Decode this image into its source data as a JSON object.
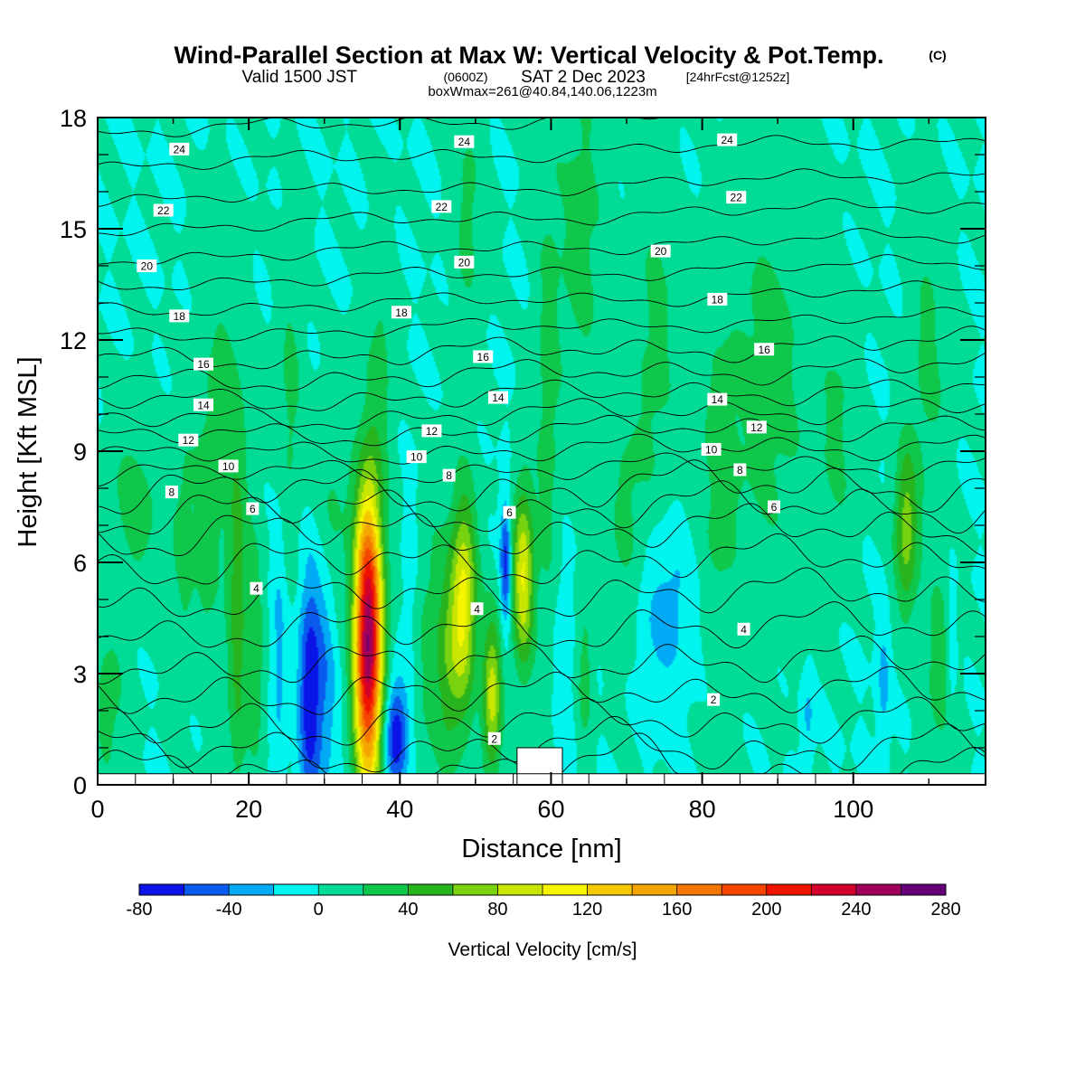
{
  "title": {
    "main": "Wind-Parallel Section at Max W: Vertical Velocity & Pot.Temp.",
    "copyright": "(C)",
    "valid_prefix": "Valid 1500 JST",
    "valid_utc": "(0600Z)",
    "valid_date": "SAT 2 Dec 2023",
    "forecast": "[24hrFcst@1252z]",
    "box_info": "boxWmax=261@40.84,140.06,1223m"
  },
  "chart_data": {
    "type": "heatmap",
    "xlabel": "Distance [nm]",
    "ylabel": "Height [Kft MSL]",
    "xlim": [
      0,
      117.5
    ],
    "ylim": [
      0,
      18
    ],
    "x_ticks": [
      0,
      20,
      40,
      60,
      80,
      100
    ],
    "y_ticks": [
      0,
      3,
      6,
      9,
      12,
      15,
      18
    ],
    "x_tick_labels": [
      "0",
      "20",
      "40",
      "60",
      "80",
      "100"
    ],
    "y_tick_labels": [
      "0",
      "3",
      "6",
      "9",
      "12",
      "15",
      "18"
    ],
    "background_w": 0,
    "colorbar": {
      "label": "Vertical Velocity [cm/s]",
      "bounds": [
        -80,
        -60,
        -40,
        -20,
        0,
        20,
        40,
        60,
        80,
        100,
        120,
        140,
        160,
        180,
        200,
        220,
        240,
        260,
        280
      ],
      "tick_values": [
        -80,
        -40,
        0,
        40,
        80,
        120,
        160,
        200,
        240,
        280
      ],
      "tick_labels": [
        "-80",
        "-40",
        "0",
        "40",
        "80",
        "120",
        "160",
        "200",
        "240",
        "280"
      ],
      "colors": [
        "#0a14e6",
        "#0a5aee",
        "#00aaf5",
        "#00f5ee",
        "#00dc96",
        "#0fc84b",
        "#28b41e",
        "#78d20f",
        "#c8e600",
        "#f5f500",
        "#f5c800",
        "#f5a500",
        "#f57800",
        "#f54600",
        "#f01400",
        "#d2002d",
        "#a0005a",
        "#640078"
      ]
    },
    "velocity_features": [
      {
        "x": 1.5,
        "zc": 2.2,
        "sx": 1.6,
        "sz": 1.6,
        "w": 28
      },
      {
        "x": 5,
        "zc": 7.5,
        "sx": 2.8,
        "sz": 1.8,
        "w": 28
      },
      {
        "x": 11.5,
        "zc": 6.5,
        "sx": 1.2,
        "sz": 2.5,
        "w": 25
      },
      {
        "x": 14.5,
        "zc": 6.5,
        "sx": 1.0,
        "sz": 2.0,
        "w": 30
      },
      {
        "x": 18.5,
        "zc": 4.5,
        "sx": 1.0,
        "sz": 3.5,
        "w": 48
      },
      {
        "x": 16.5,
        "zc": 10.5,
        "sx": 2.2,
        "sz": 3.0,
        "w": 25
      },
      {
        "x": 21,
        "zc": 3.5,
        "sx": 0.8,
        "sz": 2.5,
        "w": 30
      },
      {
        "x": 24,
        "zc": 3.5,
        "sx": 0.7,
        "sz": 2.5,
        "w": -26
      },
      {
        "x": 25.5,
        "zc": 10.5,
        "sx": 1.2,
        "sz": 3.0,
        "w": 25
      },
      {
        "x": 28,
        "zc": 2.5,
        "sx": 1.0,
        "sz": 2.2,
        "w": -72
      },
      {
        "x": 30,
        "zc": 3.0,
        "sx": 1.2,
        "sz": 2.5,
        "w": -35
      },
      {
        "x": 31,
        "zc": 7.5,
        "sx": 1.6,
        "sz": 2.0,
        "w": 26
      },
      {
        "x": 35.8,
        "zc": 3.9,
        "sx": 1.3,
        "sz": 2.8,
        "w": 261
      },
      {
        "x": 37.5,
        "zc": 11.5,
        "sx": 1.2,
        "sz": 2.5,
        "w": 25
      },
      {
        "x": 39.5,
        "zc": 1.3,
        "sx": 1.1,
        "sz": 1.1,
        "w": -80
      },
      {
        "x": 41.5,
        "zc": 5.0,
        "sx": 1.0,
        "sz": 2.0,
        "w": -22
      },
      {
        "x": 44,
        "zc": 4.0,
        "sx": 2.5,
        "sz": 2.5,
        "w": 28
      },
      {
        "x": 46.5,
        "zc": 3.0,
        "sx": 1.2,
        "sz": 2.0,
        "w": 35
      },
      {
        "x": 48.5,
        "zc": 5.0,
        "sx": 1.2,
        "sz": 2.0,
        "w": 100
      },
      {
        "x": 49,
        "zc": 15.5,
        "sx": 1.5,
        "sz": 2.5,
        "w": 25
      },
      {
        "x": 52.2,
        "zc": 2.4,
        "sx": 0.9,
        "sz": 1.5,
        "w": 90
      },
      {
        "x": 54,
        "zc": 6.0,
        "sx": 0.5,
        "sz": 1.2,
        "w": -70
      },
      {
        "x": 56.3,
        "zc": 5.6,
        "sx": 1.0,
        "sz": 1.7,
        "w": 102
      },
      {
        "x": 59.5,
        "zc": 10.0,
        "sx": 1.2,
        "sz": 5.0,
        "w": 25
      },
      {
        "x": 61.5,
        "zc": 3.2,
        "sx": 0.8,
        "sz": 2.0,
        "w": -22
      },
      {
        "x": 64,
        "zc": 15.0,
        "sx": 2.5,
        "sz": 4.0,
        "w": 26
      },
      {
        "x": 64.5,
        "zc": 3.0,
        "sx": 0.7,
        "sz": 1.5,
        "w": 30
      },
      {
        "x": 70,
        "zc": 7.0,
        "sx": 2.0,
        "sz": 2.5,
        "w": 25
      },
      {
        "x": 75,
        "zc": 4.8,
        "sx": 3.0,
        "sz": 1.7,
        "w": -30
      },
      {
        "x": 74,
        "zc": 12.0,
        "sx": 2.0,
        "sz": 3.5,
        "w": 25
      },
      {
        "x": 82,
        "zc": 8.0,
        "sx": 2.0,
        "sz": 3.5,
        "w": 24
      },
      {
        "x": 89,
        "zc": 11.0,
        "sx": 4.0,
        "sz": 4.0,
        "w": 28
      },
      {
        "x": 94,
        "zc": 1.8,
        "sx": 0.6,
        "sz": 0.8,
        "w": -26
      },
      {
        "x": 98,
        "zc": 9.5,
        "sx": 1.8,
        "sz": 2.5,
        "w": 22
      },
      {
        "x": 104,
        "zc": 2.8,
        "sx": 0.6,
        "sz": 1.2,
        "w": -28
      },
      {
        "x": 107,
        "zc": 6.9,
        "sx": 1.1,
        "sz": 1.6,
        "w": 70
      },
      {
        "x": 110,
        "zc": 11.5,
        "sx": 1.8,
        "sz": 3.0,
        "w": 25
      },
      {
        "x": 111.5,
        "zc": 3.0,
        "sx": 1.5,
        "sz": 2.0,
        "w": 30
      },
      {
        "x": 113,
        "zc": 3.5,
        "sx": 0.5,
        "sz": 1.5,
        "w": -25
      }
    ],
    "theta_contours": {
      "levels": [
        0,
        1,
        2,
        3,
        4,
        5,
        6,
        7,
        8,
        9,
        10,
        11,
        12,
        13,
        14,
        15,
        16,
        17,
        18,
        19,
        20,
        21,
        22,
        23,
        24,
        25
      ],
      "labels": [
        {
          "text": "24",
          "x": 10.8,
          "z": 17.15
        },
        {
          "text": "24",
          "x": 48.5,
          "z": 17.35
        },
        {
          "text": "24",
          "x": 83.3,
          "z": 17.4
        },
        {
          "text": "22",
          "x": 8.7,
          "z": 15.5
        },
        {
          "text": "22",
          "x": 45.5,
          "z": 15.6
        },
        {
          "text": "22",
          "x": 84.5,
          "z": 15.85
        },
        {
          "text": "20",
          "x": 6.5,
          "z": 14.0
        },
        {
          "text": "20",
          "x": 48.5,
          "z": 14.1
        },
        {
          "text": "20",
          "x": 74.5,
          "z": 14.4
        },
        {
          "text": "18",
          "x": 10.8,
          "z": 12.65
        },
        {
          "text": "18",
          "x": 40.2,
          "z": 12.75
        },
        {
          "text": "18",
          "x": 82.0,
          "z": 13.1
        },
        {
          "text": "16",
          "x": 14.0,
          "z": 11.35
        },
        {
          "text": "16",
          "x": 51.0,
          "z": 11.55
        },
        {
          "text": "16",
          "x": 88.2,
          "z": 11.75
        },
        {
          "text": "14",
          "x": 14.0,
          "z": 10.25
        },
        {
          "text": "14",
          "x": 53.0,
          "z": 10.45
        },
        {
          "text": "14",
          "x": 82.0,
          "z": 10.4
        },
        {
          "text": "12",
          "x": 12.0,
          "z": 9.3
        },
        {
          "text": "12",
          "x": 44.2,
          "z": 9.55
        },
        {
          "text": "12",
          "x": 87.2,
          "z": 9.65
        },
        {
          "text": "10",
          "x": 17.3,
          "z": 8.6
        },
        {
          "text": "10",
          "x": 42.2,
          "z": 8.85
        },
        {
          "text": "10",
          "x": 81.2,
          "z": 9.05
        },
        {
          "text": "8",
          "x": 9.8,
          "z": 7.9
        },
        {
          "text": "8",
          "x": 46.5,
          "z": 8.35
        },
        {
          "text": "8",
          "x": 85.0,
          "z": 8.5
        },
        {
          "text": "6",
          "x": 20.5,
          "z": 7.45
        },
        {
          "text": "6",
          "x": 54.5,
          "z": 7.35
        },
        {
          "text": "6",
          "x": 89.5,
          "z": 7.5
        },
        {
          "text": "4",
          "x": 21.0,
          "z": 5.3
        },
        {
          "text": "4",
          "x": 50.2,
          "z": 4.75
        },
        {
          "text": "4",
          "x": 85.5,
          "z": 4.2
        },
        {
          "text": "2",
          "x": 81.5,
          "z": 2.3
        },
        {
          "text": "2",
          "x": 52.5,
          "z": 1.25
        }
      ]
    },
    "terrain": {
      "ground_height": 0.3,
      "gap": [
        55.5,
        61.5
      ]
    }
  }
}
